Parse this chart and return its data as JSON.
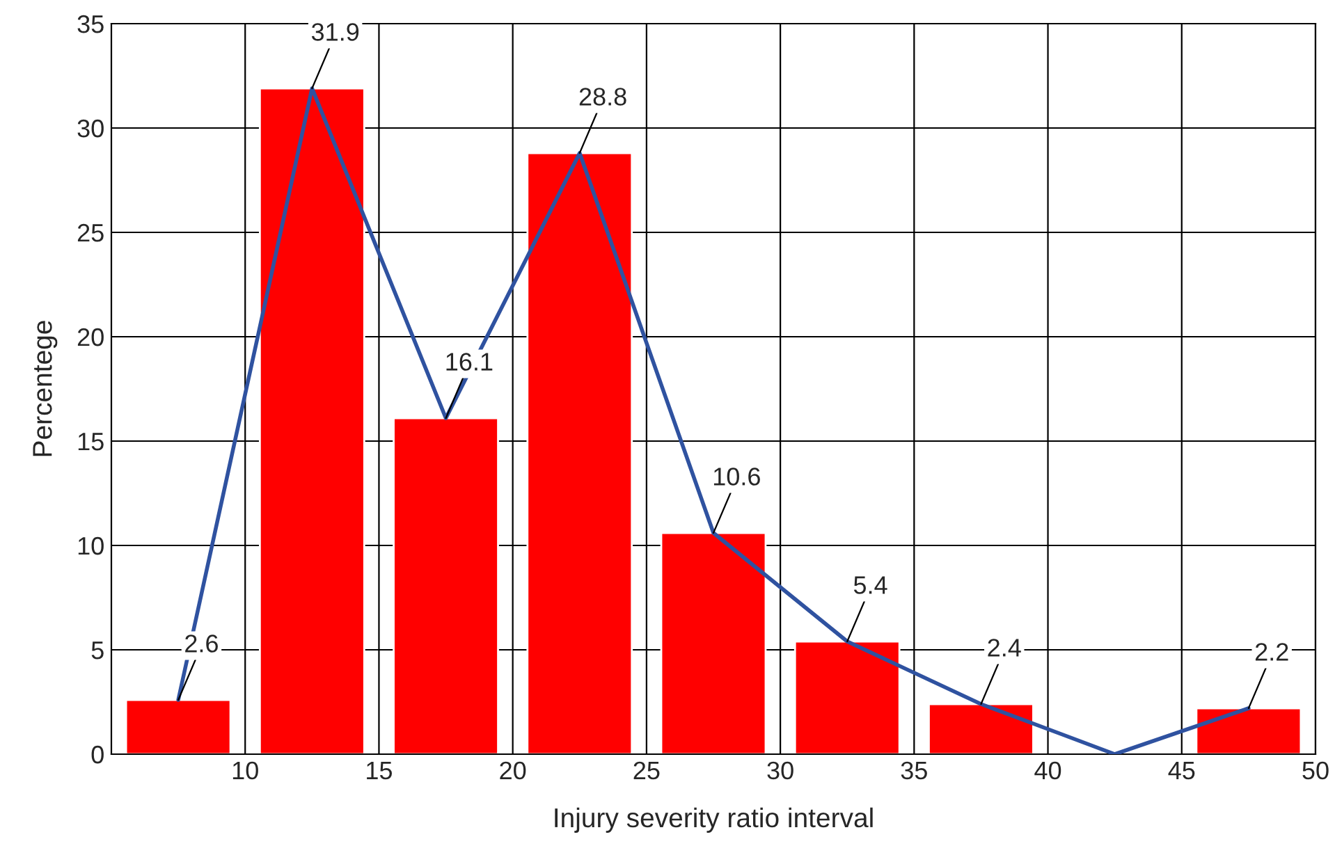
{
  "chart_data": {
    "type": "histogram",
    "xlabel": "Injury severity ratio interval",
    "ylabel": "Percentege",
    "bins": [
      5,
      10,
      15,
      20,
      25,
      30,
      35,
      40,
      45,
      50
    ],
    "values": [
      2.6,
      31.9,
      16.1,
      28.8,
      10.6,
      5.4,
      2.4,
      0,
      2.2
    ],
    "color": "#ff0000",
    "value_labels": [
      "2.6",
      "31.9",
      "16.1",
      "28.8",
      "10.6",
      "5.4",
      "2.4",
      null,
      "2.2"
    ],
    "series": [
      {
        "type": "line",
        "x": [
          7.5,
          12.5,
          17.5,
          22.5,
          27.5,
          32.5,
          37.5,
          42.5,
          47.5
        ],
        "values": [
          2.6,
          31.9,
          16.1,
          28.8,
          10.6,
          5.4,
          2.4,
          0,
          2.2
        ],
        "color": "#2f52a0"
      }
    ],
    "xlim": [
      5,
      50
    ],
    "xticks": [
      10,
      15,
      20,
      25,
      30,
      35,
      40,
      45,
      50
    ],
    "ylim": [
      0,
      35
    ],
    "yticks": [
      0,
      5,
      10,
      15,
      20,
      25,
      30,
      35
    ],
    "grid": true
  }
}
